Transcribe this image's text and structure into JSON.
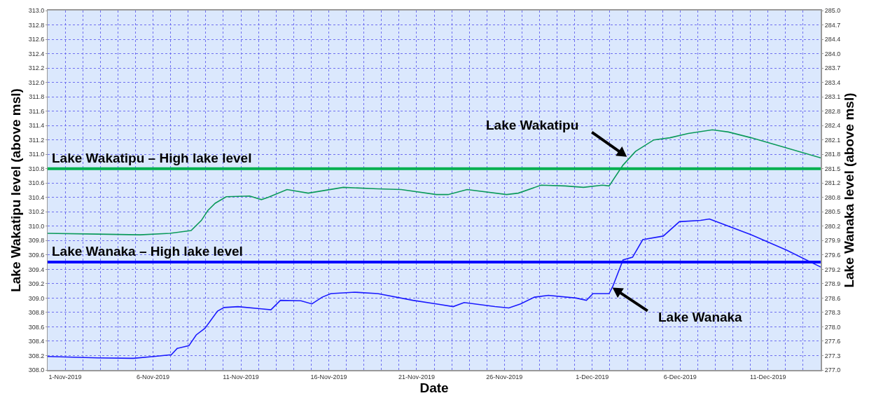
{
  "chart_data": {
    "type": "line",
    "xlabel": "Date",
    "ylabel": "Lake Wakatipu level (above msl)",
    "y2label": "Lake Wanaka level (above msl)",
    "xlim": [
      "2019-10-31",
      "2019-12-14"
    ],
    "xticks": [
      {
        "value": "2019-11-01",
        "label": "1-Nov-2019"
      },
      {
        "value": "2019-11-02",
        "label": null
      },
      {
        "value": "2019-11-03",
        "label": null
      },
      {
        "value": "2019-11-04",
        "label": null
      },
      {
        "value": "2019-11-05",
        "label": null
      },
      {
        "value": "2019-11-06",
        "label": "6-Nov-2019"
      },
      {
        "value": "2019-11-07",
        "label": null
      },
      {
        "value": "2019-11-08",
        "label": null
      },
      {
        "value": "2019-11-09",
        "label": null
      },
      {
        "value": "2019-11-10",
        "label": null
      },
      {
        "value": "2019-11-11",
        "label": "11-Nov-2019"
      },
      {
        "value": "2019-11-12",
        "label": null
      },
      {
        "value": "2019-11-13",
        "label": null
      },
      {
        "value": "2019-11-14",
        "label": null
      },
      {
        "value": "2019-11-15",
        "label": null
      },
      {
        "value": "2019-11-16",
        "label": "16-Nov-2019"
      },
      {
        "value": "2019-11-17",
        "label": null
      },
      {
        "value": "2019-11-18",
        "label": null
      },
      {
        "value": "2019-11-19",
        "label": null
      },
      {
        "value": "2019-11-20",
        "label": null
      },
      {
        "value": "2019-11-21",
        "label": "21-Nov-2019"
      },
      {
        "value": "2019-11-22",
        "label": null
      },
      {
        "value": "2019-11-23",
        "label": null
      },
      {
        "value": "2019-11-24",
        "label": null
      },
      {
        "value": "2019-11-25",
        "label": null
      },
      {
        "value": "2019-11-26",
        "label": "26-Nov-2019"
      },
      {
        "value": "2019-11-27",
        "label": null
      },
      {
        "value": "2019-11-28",
        "label": null
      },
      {
        "value": "2019-11-29",
        "label": null
      },
      {
        "value": "2019-11-30",
        "label": null
      },
      {
        "value": "2019-12-01",
        "label": "1-Dec-2019"
      },
      {
        "value": "2019-12-02",
        "label": null
      },
      {
        "value": "2019-12-03",
        "label": null
      },
      {
        "value": "2019-12-04",
        "label": null
      },
      {
        "value": "2019-12-05",
        "label": null
      },
      {
        "value": "2019-12-06",
        "label": "6-Dec-2019"
      },
      {
        "value": "2019-12-07",
        "label": null
      },
      {
        "value": "2019-12-08",
        "label": null
      },
      {
        "value": "2019-12-09",
        "label": null
      },
      {
        "value": "2019-12-10",
        "label": null
      },
      {
        "value": "2019-12-11",
        "label": "11-Dec-2019"
      },
      {
        "value": "2019-12-12",
        "label": null
      },
      {
        "value": "2019-12-13",
        "label": null
      }
    ],
    "ylim": [
      308,
      313
    ],
    "yticks": [
      {
        "value": 308,
        "label": "308.0"
      },
      {
        "value": 308.2,
        "label": "308.2"
      },
      {
        "value": 308.4,
        "label": "308.4"
      },
      {
        "value": 308.6,
        "label": "308.6"
      },
      {
        "value": 308.8,
        "label": "308.8"
      },
      {
        "value": 309,
        "label": "309.0"
      },
      {
        "value": 309.2,
        "label": "309.2"
      },
      {
        "value": 309.4,
        "label": "309.4"
      },
      {
        "value": 309.6,
        "label": "309.6"
      },
      {
        "value": 309.8,
        "label": "309.8"
      },
      {
        "value": 310,
        "label": "310.0"
      },
      {
        "value": 310.2,
        "label": "310.2"
      },
      {
        "value": 310.4,
        "label": "310.4"
      },
      {
        "value": 310.6,
        "label": "310.6"
      },
      {
        "value": 310.8,
        "label": "310.8"
      },
      {
        "value": 311,
        "label": "311.0"
      },
      {
        "value": 311.2,
        "label": "311.2"
      },
      {
        "value": 311.4,
        "label": "311.4"
      },
      {
        "value": 311.6,
        "label": "311.6"
      },
      {
        "value": 311.8,
        "label": "311.8"
      },
      {
        "value": 312,
        "label": "312.0"
      },
      {
        "value": 312.2,
        "label": "312.2"
      },
      {
        "value": 312.4,
        "label": "312.4"
      },
      {
        "value": 312.6,
        "label": "312.6"
      },
      {
        "value": 312.8,
        "label": "312.8"
      },
      {
        "value": 313,
        "label": "313.0"
      }
    ],
    "y2lim": [
      277,
      285
    ],
    "y2ticks": [
      {
        "value": 277,
        "label": "277.0"
      },
      {
        "value": 277.32,
        "label": "277.3"
      },
      {
        "value": 277.64,
        "label": "277.6"
      },
      {
        "value": 277.96,
        "label": "278.0"
      },
      {
        "value": 278.28,
        "label": "278.3"
      },
      {
        "value": 278.6,
        "label": "278.6"
      },
      {
        "value": 278.92,
        "label": "278.9"
      },
      {
        "value": 279.24,
        "label": "279.2"
      },
      {
        "value": 279.56,
        "label": "279.6"
      },
      {
        "value": 279.88,
        "label": "279.9"
      },
      {
        "value": 280.2,
        "label": "280.2"
      },
      {
        "value": 280.52,
        "label": "280.5"
      },
      {
        "value": 280.84,
        "label": "280.8"
      },
      {
        "value": 281.16,
        "label": "281.2"
      },
      {
        "value": 281.48,
        "label": "281.5"
      },
      {
        "value": 281.8,
        "label": "281.8"
      },
      {
        "value": 282.12,
        "label": "282.1"
      },
      {
        "value": 282.44,
        "label": "282.4"
      },
      {
        "value": 282.76,
        "label": "282.8"
      },
      {
        "value": 283.08,
        "label": "283.1"
      },
      {
        "value": 283.4,
        "label": "283.4"
      },
      {
        "value": 283.72,
        "label": "283.7"
      },
      {
        "value": 284.04,
        "label": "284.0"
      },
      {
        "value": 284.36,
        "label": "284.4"
      },
      {
        "value": 284.68,
        "label": "284.7"
      },
      {
        "value": 285,
        "label": "285.0"
      }
    ],
    "grid": true,
    "marker": "none",
    "line_style": "solid",
    "series": [
      {
        "color": "#0b9a5a",
        "x": [
          "2019-10-31T00:00",
          "2019-11-02T21:00",
          "2019-11-05T06:00",
          "2019-11-06T23:00",
          "2019-11-08T04:00",
          "2019-11-08T18:00",
          "2019-11-09T03:00",
          "2019-11-09T13:00",
          "2019-11-10T04:00",
          "2019-11-11T12:00",
          "2019-11-12T04:00",
          "2019-11-12T13:00",
          "2019-11-13T15:00",
          "2019-11-14T20:00",
          "2019-11-16T20:00",
          "2019-11-18T19:00",
          "2019-11-20T03:00",
          "2019-11-22T03:00",
          "2019-11-22T19:00",
          "2019-11-23T21:00",
          "2019-11-26T03:00",
          "2019-11-26T19:00",
          "2019-11-28T02:00",
          "2019-11-29T11:00",
          "2019-11-30T12:00",
          "2019-12-01T14:00",
          "2019-12-01T23:00",
          "2019-12-02T18:00",
          "2019-12-03T11:00",
          "2019-12-04T12:00",
          "2019-12-05T10:00",
          "2019-12-06T11:00",
          "2019-12-07T20:00",
          "2019-12-08T18:00",
          "2019-12-10T01:00",
          "2019-12-12T01:00",
          "2019-12-14T00:00"
        ],
        "values": [
          309.9,
          309.89,
          309.88,
          309.9,
          309.94,
          310.08,
          310.22,
          310.32,
          310.41,
          310.42,
          310.37,
          310.4,
          310.51,
          310.46,
          310.54,
          310.52,
          310.51,
          310.44,
          310.44,
          310.51,
          310.44,
          310.46,
          310.57,
          310.56,
          310.54,
          310.57,
          310.56,
          310.85,
          311.04,
          311.2,
          311.23,
          311.29,
          311.34,
          311.31,
          311.23,
          311.09,
          310.95
        ]
      },
      {
        "color": "#1a1aff",
        "axis": "y2",
        "x": [
          "2019-10-31T00:00",
          "2019-11-02T21:00",
          "2019-11-04T21:00",
          "2019-11-06T01:00",
          "2019-11-07T01:00",
          "2019-11-07T09:00",
          "2019-11-08T01:00",
          "2019-11-08T11:00",
          "2019-11-08T23:00",
          "2019-11-09T16:00",
          "2019-11-10T01:00",
          "2019-11-10T20:00",
          "2019-11-12T04:00",
          "2019-11-12T17:00",
          "2019-11-13T06:00",
          "2019-11-14T10:00",
          "2019-11-15T01:00",
          "2019-11-15T15:00",
          "2019-11-16T03:00",
          "2019-11-17T12:00",
          "2019-11-18T19:00",
          "2019-11-20T19:00",
          "2019-11-22T03:00",
          "2019-11-23T02:00",
          "2019-11-23T17:00",
          "2019-11-25T11:00",
          "2019-11-26T06:00",
          "2019-11-26T22:00",
          "2019-11-27T17:00",
          "2019-11-28T12:00",
          "2019-11-30T02:00",
          "2019-11-30T16:00",
          "2019-12-01T01:00",
          "2019-12-01T23:00",
          "2019-12-02T04:00",
          "2019-12-02T18:00",
          "2019-12-03T07:00",
          "2019-12-03T21:00",
          "2019-12-05T01:00",
          "2019-12-05T23:00",
          "2019-12-07T04:00",
          "2019-12-07T16:00",
          "2019-12-10T01:00",
          "2019-12-12T01:00",
          "2019-12-14T00:00"
        ],
        "values": [
          277.3,
          277.27,
          277.26,
          277.3,
          277.34,
          277.48,
          277.54,
          277.78,
          277.93,
          278.31,
          278.39,
          278.41,
          278.36,
          278.34,
          278.55,
          278.54,
          278.47,
          278.62,
          278.7,
          278.73,
          278.7,
          278.55,
          278.47,
          278.41,
          278.5,
          278.41,
          278.38,
          278.47,
          278.62,
          278.66,
          278.6,
          278.55,
          278.7,
          278.7,
          278.86,
          279.45,
          279.51,
          279.9,
          279.98,
          280.3,
          280.33,
          280.36,
          280.01,
          279.67,
          279.29
        ]
      }
    ],
    "ref_lines": [
      {
        "axis": "y",
        "value": 310.8,
        "label": "Lake Wakatipu – High lake level",
        "color": "#00b050"
      },
      {
        "axis": "y2",
        "value": 279.4,
        "label": "Lake Wanaka – High lake level",
        "color": "#0a0aff"
      }
    ],
    "annotations": [
      "Lake Wakatipu",
      "Lake Wanaka"
    ]
  }
}
